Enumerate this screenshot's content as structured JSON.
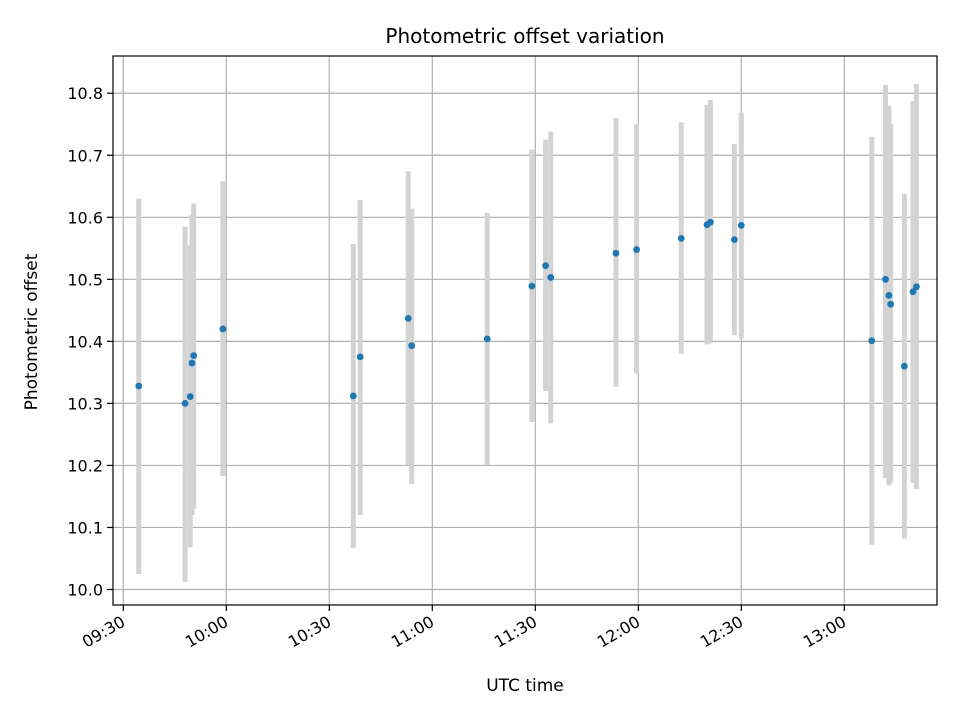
{
  "chart_data": {
    "type": "scatter",
    "title": "Photometric offset variation",
    "xlabel": "UTC time",
    "ylabel": "Photometric offset",
    "x_axis_kind": "time",
    "xlim": [
      "09:27",
      "13:27"
    ],
    "ylim": [
      9.975,
      10.86
    ],
    "xticks": [
      "09:30",
      "10:00",
      "10:30",
      "11:00",
      "11:30",
      "12:00",
      "12:30",
      "13:00"
    ],
    "yticks": [
      "10.0",
      "10.1",
      "10.2",
      "10.3",
      "10.4",
      "10.5",
      "10.6",
      "10.7",
      "10.8"
    ],
    "grid": true,
    "colors": {
      "points": "#1f77b4",
      "error_bars": "#d3d3d3",
      "grid": "#b0b0b0",
      "axes": "#000000"
    },
    "series": [
      {
        "x": [
          "09:34:30",
          "09:48:00",
          "09:49:30",
          "09:50:00",
          "09:50:30",
          "09:59:00",
          "10:37:00",
          "10:39:00",
          "10:53:00",
          "10:54:00",
          "11:16:00",
          "11:29:00",
          "11:33:00",
          "11:34:30",
          "11:53:30",
          "11:59:30",
          "12:12:30",
          "12:20:00",
          "12:21:00",
          "12:28:00",
          "12:30:00",
          "13:08:00",
          "13:12:00",
          "13:13:00",
          "13:13:30",
          "13:17:30",
          "13:20:00",
          "13:21:00"
        ],
        "y": [
          10.328,
          10.3,
          10.311,
          10.365,
          10.377,
          10.42,
          10.312,
          10.375,
          10.437,
          10.393,
          10.404,
          10.489,
          10.522,
          10.503,
          10.542,
          10.548,
          10.566,
          10.588,
          10.592,
          10.564,
          10.587,
          10.401,
          10.5,
          10.474,
          10.46,
          10.36,
          10.48,
          10.488
        ],
        "y_low": [
          10.025,
          10.012,
          10.068,
          10.12,
          10.13,
          10.183,
          10.067,
          10.12,
          10.2,
          10.17,
          10.2,
          10.27,
          10.32,
          10.268,
          10.327,
          10.348,
          10.38,
          10.395,
          10.397,
          10.41,
          10.405,
          10.072,
          10.18,
          10.168,
          10.172,
          10.082,
          10.172,
          10.162
        ],
        "y_high": [
          10.63,
          10.585,
          10.555,
          10.605,
          10.622,
          10.658,
          10.557,
          10.628,
          10.674,
          10.614,
          10.607,
          10.709,
          10.725,
          10.738,
          10.76,
          10.75,
          10.753,
          10.781,
          10.789,
          10.718,
          10.769,
          10.73,
          10.813,
          10.78,
          10.75,
          10.638,
          10.787,
          10.815
        ]
      }
    ]
  }
}
